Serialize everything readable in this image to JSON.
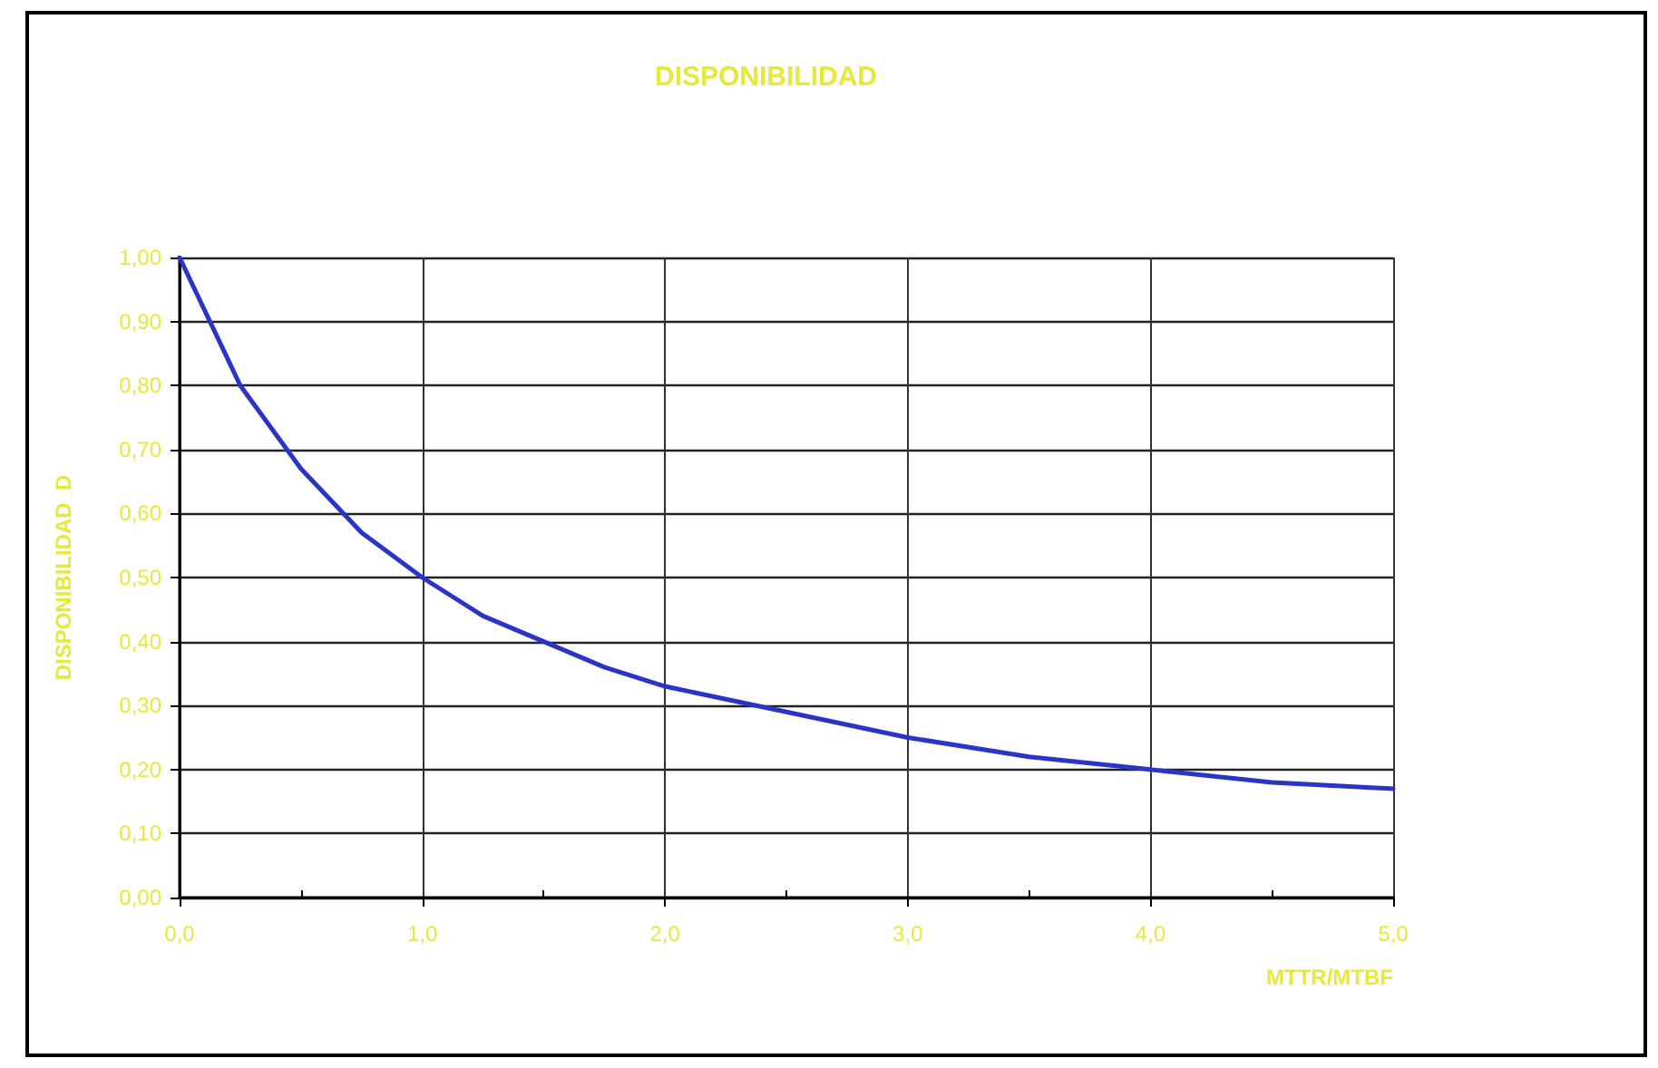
{
  "chart_data": {
    "type": "line",
    "title": "DISPONIBILIDAD",
    "xlabel": "MTTR/MTBF",
    "ylabel": "DISPONIBILIDAD  D",
    "x": [
      0,
      0.25,
      0.5,
      0.75,
      1,
      1.25,
      1.5,
      1.75,
      2,
      2.5,
      3,
      3.5,
      4,
      4.5,
      5
    ],
    "series": [
      {
        "color": "#2a35c8",
        "values": [
          1,
          0.8,
          0.67,
          0.57,
          0.5,
          0.44,
          0.4,
          0.36,
          0.33,
          0.29,
          0.25,
          0.22,
          0.2,
          0.18,
          0.17
        ]
      }
    ],
    "xlim": [
      0,
      5
    ],
    "xticks": [
      {
        "value": 0,
        "label": "0,0"
      },
      {
        "value": 0.5,
        "label": null
      },
      {
        "value": 1,
        "label": "1,0"
      },
      {
        "value": 1.5,
        "label": null
      },
      {
        "value": 2,
        "label": "2,0"
      },
      {
        "value": 2.5,
        "label": null
      },
      {
        "value": 3,
        "label": "3,0"
      },
      {
        "value": 3.5,
        "label": null
      },
      {
        "value": 4,
        "label": "4,0"
      },
      {
        "value": 4.5,
        "label": null
      },
      {
        "value": 5,
        "label": "5,0"
      }
    ],
    "ylim": [
      0,
      1
    ],
    "yticks": [
      {
        "value": 0,
        "label": "0,00"
      },
      {
        "value": 0.1,
        "label": "0,10"
      },
      {
        "value": 0.2,
        "label": "0,20"
      },
      {
        "value": 0.3,
        "label": "0,30"
      },
      {
        "value": 0.4,
        "label": "0,40"
      },
      {
        "value": 0.5,
        "label": "0,50"
      },
      {
        "value": 0.6,
        "label": "0,60"
      },
      {
        "value": 0.7,
        "label": "0,70"
      },
      {
        "value": 0.8,
        "label": "0,80"
      },
      {
        "value": 0.9,
        "label": "0,90"
      },
      {
        "value": 1,
        "label": "1,00"
      }
    ],
    "grid": true,
    "marker": "none",
    "line_style": "solid"
  }
}
